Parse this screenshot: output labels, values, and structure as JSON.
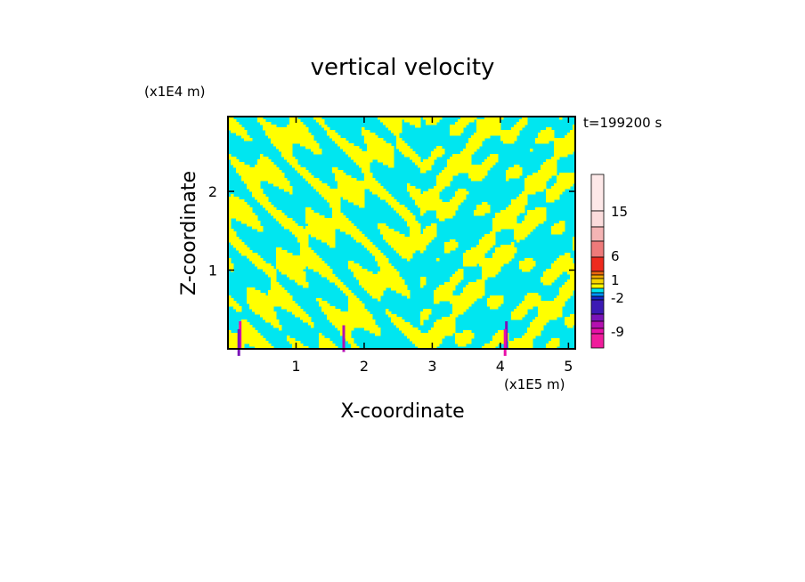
{
  "chart_data": {
    "type": "heatmap",
    "title": "vertical velocity",
    "xlabel": "X-coordinate",
    "ylabel": "Z-coordinate",
    "x_unit": "(x1E5 m)",
    "y_unit": "(x1E4 m)",
    "time_label": "t=199200 s",
    "xlim": [
      0,
      5.1
    ],
    "ylim": [
      0,
      2.95
    ],
    "x_ticks": [
      "1",
      "2",
      "3",
      "4",
      "5"
    ],
    "x_tick_values": [
      1,
      2,
      3,
      4,
      5
    ],
    "y_ticks": [
      "1",
      "2"
    ],
    "y_tick_values": [
      1,
      2
    ],
    "colorbar": {
      "tick_labels": [
        "15",
        "6",
        "1",
        "-2",
        "-9"
      ],
      "levels": [
        {
          "value": 21,
          "color": "#fde8e8"
        },
        {
          "value": 18,
          "color": "#fbdcdc"
        },
        {
          "value": 15,
          "color": "#f4b4b4"
        },
        {
          "value": 12,
          "color": "#ee7a7a"
        },
        {
          "value": 9,
          "color": "#ee2a1e"
        },
        {
          "value": 6,
          "color": "#ec6a10"
        },
        {
          "value": 3,
          "color": "#f2ab00"
        },
        {
          "value": 2,
          "color": "#f7d400"
        },
        {
          "value": 1,
          "color": "#ffff00"
        },
        {
          "value": 0,
          "color": "#00e6f0"
        },
        {
          "value": -1,
          "color": "#0096ff"
        },
        {
          "value": -2,
          "color": "#1628c8"
        },
        {
          "value": -3,
          "color": "#3c1ab4"
        },
        {
          "value": -5,
          "color": "#7a14b8"
        },
        {
          "value": -7,
          "color": "#b410b0"
        },
        {
          "value": -9,
          "color": "#e810a8"
        },
        {
          "value": -11,
          "color": "#f01c9c"
        }
      ]
    },
    "field_colors": {
      "updraft": "#ffff00",
      "downdraft": "#00e6f0"
    }
  }
}
